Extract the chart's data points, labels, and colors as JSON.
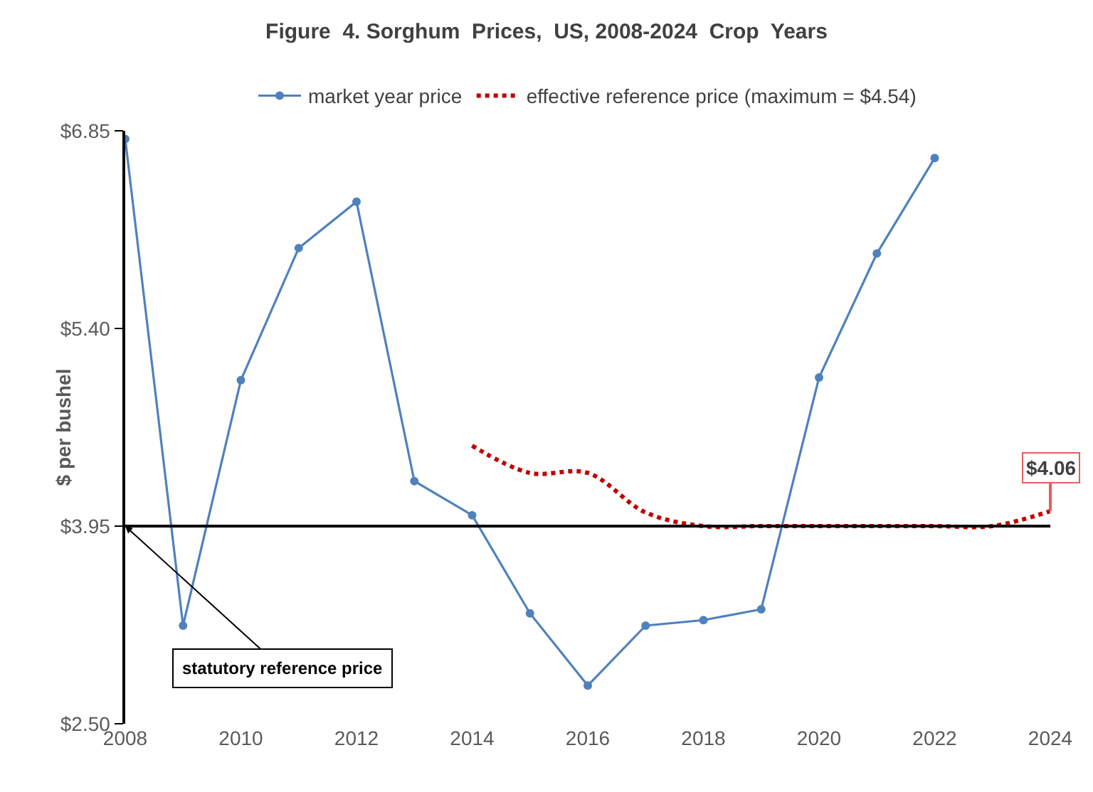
{
  "chart_data": {
    "type": "line",
    "title": "Figure  4. Sorghum  Prices,  US, 2008-2024  Crop  Years",
    "ylabel": "$ per bushel",
    "x": [
      2008,
      2009,
      2010,
      2011,
      2012,
      2013,
      2014,
      2015,
      2016,
      2017,
      2018,
      2019,
      2020,
      2021,
      2022,
      2023,
      2024
    ],
    "series": [
      {
        "name": "market year price",
        "color": "#4f81bd",
        "marker": "circle",
        "line_style": "solid",
        "values": [
          6.79,
          3.22,
          5.02,
          5.99,
          6.33,
          4.28,
          4.03,
          3.31,
          2.78,
          3.22,
          3.26,
          3.34,
          5.04,
          5.95,
          6.65,
          null,
          null
        ]
      },
      {
        "name": "effective reference price (maximum = $4.54)",
        "color": "#c00000",
        "marker": "none",
        "line_style": "dotted",
        "values": [
          null,
          null,
          null,
          null,
          null,
          null,
          4.54,
          4.34,
          4.34,
          4.05,
          3.95,
          3.95,
          3.95,
          3.95,
          3.95,
          3.95,
          4.06
        ]
      }
    ],
    "xlim": [
      2008,
      2024
    ],
    "xticks": [
      2008,
      2010,
      2012,
      2014,
      2016,
      2018,
      2020,
      2022,
      2024
    ],
    "ylim": [
      2.5,
      6.85
    ],
    "yticks": [
      {
        "value": 2.5,
        "label": "$2.50"
      },
      {
        "value": 3.95,
        "label": "$3.95"
      },
      {
        "value": 5.4,
        "label": "$5.40"
      },
      {
        "value": 6.85,
        "label": "$6.85"
      }
    ],
    "ref_lines": [
      {
        "axis": "y",
        "value": 3.95,
        "label": "statutory reference price",
        "color": "#000000"
      }
    ],
    "annotations": [
      {
        "text": "$4.06",
        "x": 2024,
        "y": 4.06
      }
    ],
    "grid": false,
    "legend": "top"
  }
}
